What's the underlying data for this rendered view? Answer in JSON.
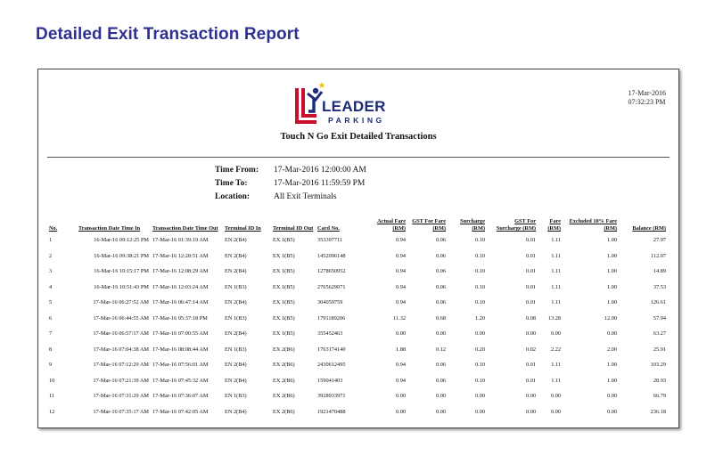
{
  "page": {
    "heading": "Detailed Exit Transaction Report"
  },
  "report": {
    "print_date": "17-Mar-2016",
    "print_time": "07:32:23 PM",
    "logo": {
      "word": "LEADER",
      "sub": "PARKING"
    },
    "title": "Touch N Go Exit Detailed Transactions",
    "criteria": [
      {
        "label": "Time From:",
        "value": "17-Mar-2016 12:00:00 AM"
      },
      {
        "label": "Time To:",
        "value": "17-Mar-2016 11:59:59 PM"
      },
      {
        "label": "Location:",
        "value": "All Exit Terminals"
      }
    ],
    "colors": {
      "brand_blue": "#1d2b7a",
      "brand_red": "#c8102e",
      "heading": "#2e3192",
      "star": "#f2c200"
    }
  },
  "table": {
    "headers": {
      "no": "No.",
      "date_in": "Transaction Date Time In",
      "date_out": "Transaction Date Time Out",
      "terminal_in": "Terminal ID In",
      "terminal_out": "Terminal ID Out",
      "card": "Card No.",
      "fare": "Actual Fare (RM)",
      "gst_fare": "GST For Fare (RM)",
      "surcharge": "Surcharge (RM)",
      "gst_surcharge": "GST For Surcharge (RM)",
      "fare2": "Fare (RM)",
      "excluded": "Excluded 10% Fare (RM)",
      "balance": "Balance (RM)"
    },
    "rows": [
      {
        "no": "1",
        "date_in": "16-Mar-16 09:12:25 PM",
        "date_out": "17-Mar-16 01:39:19 AM",
        "terminal_in": "EN 2(B4)",
        "terminal_out": "EX 1(B5)",
        "card": "353397711",
        "fare": "0.94",
        "gst_fare": "0.06",
        "surcharge": "0.10",
        "gst_surcharge": "0.01",
        "fare2": "1.11",
        "excluded": "1.00",
        "balance": "27.97"
      },
      {
        "no": "2",
        "date_in": "16-Mar-16 09:38:21 PM",
        "date_out": "17-Mar-16 12:28:51 AM",
        "terminal_in": "EN 2(B4)",
        "terminal_out": "EX 1(B5)",
        "card": "1452096148",
        "fare": "0.94",
        "gst_fare": "0.06",
        "surcharge": "0.10",
        "gst_surcharge": "0.01",
        "fare2": "1.11",
        "excluded": "1.00",
        "balance": "112.07"
      },
      {
        "no": "3",
        "date_in": "16-Mar-16 10:15:17 PM",
        "date_out": "17-Mar-16 12:08:29 AM",
        "terminal_in": "EN 2(B4)",
        "terminal_out": "EX 1(B5)",
        "card": "1278650952",
        "fare": "0.94",
        "gst_fare": "0.06",
        "surcharge": "0.10",
        "gst_surcharge": "0.01",
        "fare2": "1.11",
        "excluded": "1.00",
        "balance": "14.89"
      },
      {
        "no": "4",
        "date_in": "16-Mar-16 10:51:43 PM",
        "date_out": "17-Mar-16 12:03:24 AM",
        "terminal_in": "EN 1(B3)",
        "terminal_out": "EX 1(B5)",
        "card": "2765629071",
        "fare": "0.94",
        "gst_fare": "0.06",
        "surcharge": "0.10",
        "gst_surcharge": "0.01",
        "fare2": "1.11",
        "excluded": "1.00",
        "balance": "37.53"
      },
      {
        "no": "5",
        "date_in": "17-Mar-16 06:27:52 AM",
        "date_out": "17-Mar-16 06:47:14 AM",
        "terminal_in": "EN 2(B4)",
        "terminal_out": "EX 1(B5)",
        "card": "304059759",
        "fare": "0.94",
        "gst_fare": "0.06",
        "surcharge": "0.10",
        "gst_surcharge": "0.01",
        "fare2": "1.11",
        "excluded": "1.00",
        "balance": "126.61"
      },
      {
        "no": "6",
        "date_in": "17-Mar-16 06:44:55 AM",
        "date_out": "17-Mar-16 05:37:18 PM",
        "terminal_in": "EN 1(B3)",
        "terminal_out": "EX 1(B5)",
        "card": "1791189206",
        "fare": "11.32",
        "gst_fare": "0.68",
        "surcharge": "1.20",
        "gst_surcharge": "0.08",
        "fare2": "13.28",
        "excluded": "12.00",
        "balance": "57.94"
      },
      {
        "no": "7",
        "date_in": "17-Mar-16 06:57:17 AM",
        "date_out": "17-Mar-16 07:00:55 AM",
        "terminal_in": "EN 2(B4)",
        "terminal_out": "EX 1(B5)",
        "card": "355452463",
        "fare": "0.00",
        "gst_fare": "0.00",
        "surcharge": "0.00",
        "gst_surcharge": "0.00",
        "fare2": "0.00",
        "excluded": "0.00",
        "balance": "63.27"
      },
      {
        "no": "8",
        "date_in": "17-Mar-16 07:04:38 AM",
        "date_out": "17-Mar-16 08:08:44 AM",
        "terminal_in": "EN 1(B3)",
        "terminal_out": "EX 2(B6)",
        "card": "1763174140",
        "fare": "1.88",
        "gst_fare": "0.12",
        "surcharge": "0.20",
        "gst_surcharge": "0.02",
        "fare2": "2.22",
        "excluded": "2.00",
        "balance": "25.91"
      },
      {
        "no": "9",
        "date_in": "17-Mar-16 07:12:29 AM",
        "date_out": "17-Mar-16 07:56:01 AM",
        "terminal_in": "EN 2(B4)",
        "terminal_out": "EX 2(B6)",
        "card": "2430612495",
        "fare": "0.94",
        "gst_fare": "0.06",
        "surcharge": "0.10",
        "gst_surcharge": "0.01",
        "fare2": "1.11",
        "excluded": "1.00",
        "balance": "103.29"
      },
      {
        "no": "10",
        "date_in": "17-Mar-16 07:21:39 AM",
        "date_out": "17-Mar-16 07:45:32 AM",
        "terminal_in": "EN 2(B4)",
        "terminal_out": "EX 2(B6)",
        "card": "159041403",
        "fare": "0.94",
        "gst_fare": "0.06",
        "surcharge": "0.10",
        "gst_surcharge": "0.01",
        "fare2": "1.11",
        "excluded": "1.00",
        "balance": "28.93"
      },
      {
        "no": "11",
        "date_in": "17-Mar-16 07:31:29 AM",
        "date_out": "17-Mar-16 07:36:07 AM",
        "terminal_in": "EN 1(B3)",
        "terminal_out": "EX 2(B6)",
        "card": "3928933971",
        "fare": "0.00",
        "gst_fare": "0.00",
        "surcharge": "0.00",
        "gst_surcharge": "0.00",
        "fare2": "0.00",
        "excluded": "0.00",
        "balance": "66.79"
      },
      {
        "no": "12",
        "date_in": "17-Mar-16 07:35:17 AM",
        "date_out": "17-Mar-16 07:42:05 AM",
        "terminal_in": "EN 2(B4)",
        "terminal_out": "EX 2(B6)",
        "card": "1921470488",
        "fare": "0.00",
        "gst_fare": "0.00",
        "surcharge": "0.00",
        "gst_surcharge": "0.00",
        "fare2": "0.00",
        "excluded": "0.00",
        "balance": "236.18"
      }
    ]
  }
}
